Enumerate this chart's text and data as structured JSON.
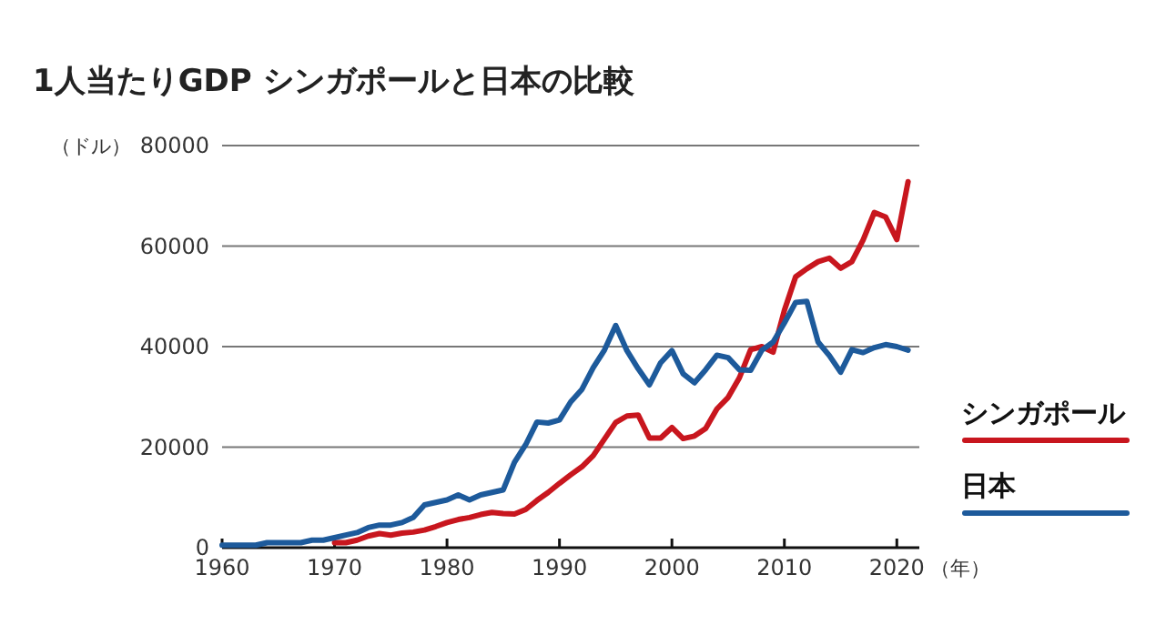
{
  "chart_data": {
    "type": "line",
    "title": "1人当たりGDP シンガポールと日本の比較",
    "xlabel": "（年）",
    "ylabel": "（ドル）",
    "x": [
      1960,
      1961,
      1962,
      1963,
      1964,
      1965,
      1966,
      1967,
      1968,
      1969,
      1970,
      1971,
      1972,
      1973,
      1974,
      1975,
      1976,
      1977,
      1978,
      1979,
      1980,
      1981,
      1982,
      1983,
      1984,
      1985,
      1986,
      1987,
      1988,
      1989,
      1990,
      1991,
      1992,
      1993,
      1994,
      1995,
      1996,
      1997,
      1998,
      1999,
      2000,
      2001,
      2002,
      2003,
      2004,
      2005,
      2006,
      2007,
      2008,
      2009,
      2010,
      2011,
      2012,
      2013,
      2014,
      2015,
      2016,
      2017,
      2018,
      2019,
      2020,
      2021
    ],
    "series": [
      {
        "name": "シンガポール",
        "color": "#c8161e",
        "values": [
          null,
          null,
          null,
          null,
          null,
          null,
          null,
          null,
          null,
          null,
          1000,
          1000,
          1500,
          2300,
          2800,
          2500,
          2900,
          3100,
          3500,
          4200,
          5000,
          5600,
          6000,
          6600,
          7000,
          6800,
          6700,
          7600,
          9400,
          11000,
          12800,
          14500,
          16100,
          18300,
          21600,
          24900,
          26200,
          26400,
          21800,
          21800,
          23900,
          21700,
          22200,
          23700,
          27600,
          29900,
          33800,
          39400,
          40000,
          38900,
          47200,
          53900,
          55500,
          56900,
          57600,
          55600,
          56900,
          61200,
          66700,
          65800,
          61300,
          72800
        ]
      },
      {
        "name": "日本",
        "color": "#1d5a9b",
        "values": [
          500,
          500,
          500,
          500,
          1000,
          1000,
          1000,
          1000,
          1500,
          1500,
          2000,
          2500,
          3000,
          4000,
          4500,
          4500,
          5000,
          6000,
          8500,
          9000,
          9500,
          10500,
          9500,
          10500,
          11000,
          11500,
          17000,
          20500,
          25000,
          24800,
          25400,
          29000,
          31500,
          35800,
          39300,
          44200,
          39200,
          35600,
          32400,
          36800,
          39200,
          34600,
          32800,
          35400,
          38300,
          37800,
          35400,
          35300,
          39300,
          40900,
          44700,
          48800,
          49000,
          40900,
          38200,
          34900,
          39400,
          38800,
          39800,
          40400,
          40000,
          39300
        ]
      }
    ],
    "xlim": [
      1960,
      2022
    ],
    "ylim": [
      0,
      80000
    ],
    "xticks": [
      1960,
      1970,
      1980,
      1990,
      2000,
      2010,
      2020
    ],
    "yticks": [
      0,
      20000,
      40000,
      60000,
      80000
    ],
    "grid": "y",
    "legend": "right",
    "marker": "none",
    "line_style": "solid"
  }
}
